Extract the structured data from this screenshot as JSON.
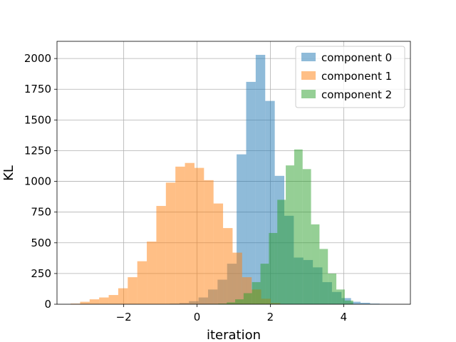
{
  "chart_data": {
    "type": "histogram",
    "title": "",
    "xlabel": "iteration",
    "ylabel": "KL",
    "xlim": [
      -3.82,
      5.82
    ],
    "ylim": [
      0,
      2140
    ],
    "xticks": [
      -2,
      0,
      2,
      4
    ],
    "xtick_labels": [
      "−2",
      "0",
      "2",
      "4"
    ],
    "yticks": [
      0,
      250,
      500,
      750,
      1000,
      1250,
      1500,
      1750,
      2000
    ],
    "ytick_labels": [
      "0",
      "250",
      "500",
      "750",
      "1000",
      "1250",
      "1500",
      "1750",
      "2000"
    ],
    "grid": true,
    "legend_position": "top-right",
    "bar_alpha": 0.5,
    "series": [
      {
        "name": "component 0",
        "color": "#1f77b4",
        "bin_edges": [
          -1.0,
          -0.74,
          -0.48,
          -0.22,
          0.04,
          0.3,
          0.56,
          0.82,
          1.08,
          1.34,
          1.6,
          1.86,
          2.12,
          2.38,
          2.64,
          2.9,
          3.16,
          3.42,
          3.68,
          3.94,
          4.2,
          4.46,
          4.72,
          4.98,
          5.24
        ],
        "counts": [
          2,
          5,
          10,
          25,
          55,
          120,
          200,
          330,
          1220,
          1810,
          2030,
          1655,
          1045,
          720,
          380,
          360,
          300,
          180,
          100,
          50,
          20,
          12,
          5,
          2
        ]
      },
      {
        "name": "component 1",
        "color": "#ff7f0e",
        "bin_edges": [
          -3.45,
          -3.19,
          -2.93,
          -2.67,
          -2.41,
          -2.15,
          -1.89,
          -1.63,
          -1.37,
          -1.11,
          -0.85,
          -0.59,
          -0.33,
          -0.07,
          0.19,
          0.45,
          0.71,
          0.97,
          1.23,
          1.49,
          1.75,
          2.01,
          2.27
        ],
        "counts": [
          5,
          20,
          40,
          55,
          75,
          130,
          220,
          350,
          510,
          800,
          990,
          1120,
          1150,
          1110,
          1010,
          820,
          620,
          420,
          220,
          120,
          45,
          10
        ]
      },
      {
        "name": "component 2",
        "color": "#2ca02c",
        "bin_edges": [
          0.35,
          0.58,
          0.81,
          1.04,
          1.27,
          1.5,
          1.73,
          1.96,
          2.19,
          2.42,
          2.65,
          2.88,
          3.11,
          3.34,
          3.57,
          3.8,
          4.03,
          4.26
        ],
        "counts": [
          2,
          5,
          15,
          40,
          90,
          180,
          330,
          580,
          850,
          1130,
          1260,
          1100,
          650,
          450,
          250,
          120,
          30
        ]
      }
    ]
  }
}
